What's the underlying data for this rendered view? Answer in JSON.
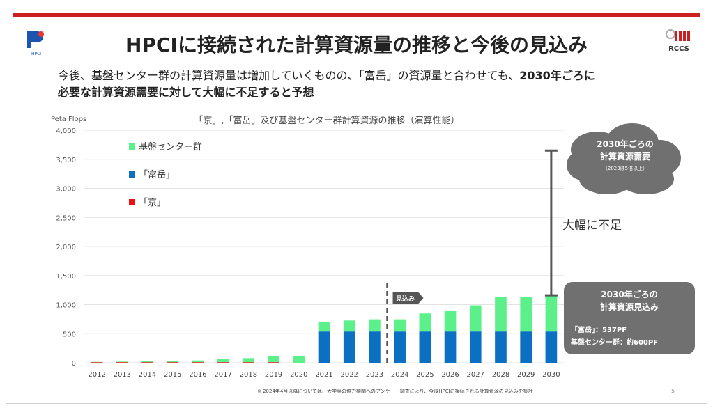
{
  "slide": {
    "title": "HPCIに接続された計算資源量の推移と今後の見込み",
    "subtitle_plain": "今後、基盤センター群の計算資源量は増加していくものの、「富岳」の資源量と合わせても、",
    "subtitle_bold_1": "2030年ごろに",
    "subtitle_bold_2": "必要な計算資源需要に対して大幅に不足すると予想",
    "footnote": "※ 2024年4月以降については、大学等の協力機関へのアンケート調査により、今後HPCIに接続される計算資源の見込みを集計",
    "page_number": "5",
    "logo_left": "HPCI",
    "logo_right": "RCCS"
  },
  "chart_data": {
    "type": "bar",
    "stacked": true,
    "title": "「京」,「富岳」及び基盤センター群計算資源の推移（演算性能）",
    "ylabel": "Peta Flops",
    "ylim": [
      0,
      4000
    ],
    "yticks": [
      "0",
      "500",
      "1,000",
      "1,500",
      "2,000",
      "2,500",
      "3,000",
      "3,500",
      "4,000"
    ],
    "grid": true,
    "legend_position": "top-left",
    "categories": [
      "2012",
      "2013",
      "2014",
      "2015",
      "2016",
      "2017",
      "2018",
      "2019",
      "2020",
      "2021",
      "2022",
      "2023",
      "2024",
      "2025",
      "2026",
      "2027",
      "2028",
      "2029",
      "2030"
    ],
    "series": [
      {
        "name": "「京」",
        "color": "#ee1111",
        "values": [
          10,
          10,
          10,
          10,
          10,
          10,
          10,
          10,
          0,
          0,
          0,
          0,
          0,
          0,
          0,
          0,
          0,
          0,
          0
        ]
      },
      {
        "name": "「富岳」",
        "color": "#0b6fc2",
        "values": [
          0,
          0,
          0,
          0,
          0,
          0,
          0,
          0,
          0,
          537,
          537,
          537,
          537,
          537,
          537,
          537,
          537,
          537,
          537
        ]
      },
      {
        "name": "基盤センター群",
        "color": "#5cf08a",
        "values": [
          5,
          10,
          18,
          25,
          30,
          55,
          70,
          100,
          110,
          170,
          190,
          210,
          210,
          310,
          360,
          450,
          600,
          600,
          620
        ]
      }
    ],
    "forecast_marker": {
      "after": "2023",
      "label": "見込み"
    },
    "annotations": {
      "demand_cloud": {
        "title_line1": "2030年ごろの",
        "title_line2": "計算資源需要",
        "note": "（2023ほ5倍以上）",
        "value": 3650
      },
      "gap_label": "大幅に不足",
      "supply_box": {
        "title_line1": "2030年ごろの",
        "title_line2": "計算資源見込み",
        "line1": "「富岳」：537PF",
        "line2": "基盤センター群：約600PF",
        "value": 1160
      }
    }
  },
  "colors": {
    "accent_red": "#cc1f1f",
    "grid": "#e3e3e3",
    "annotation_gray": "#707070"
  }
}
